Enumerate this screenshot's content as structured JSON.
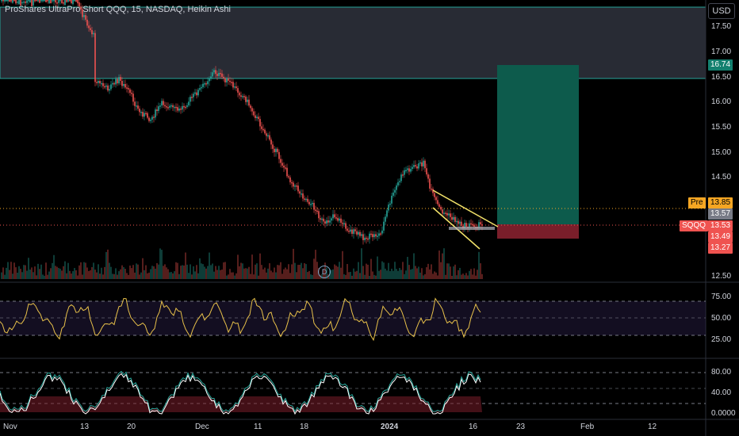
{
  "header": {
    "title": "ProShares UltraPro Short QQQ, 15, NASDAQ, Heikin Ashi",
    "currency": "USD"
  },
  "price_axis": {
    "ticks": [
      "17.50",
      "17.00",
      "16.50",
      "16.00",
      "15.50",
      "15.00",
      "14.50",
      "12.50"
    ]
  },
  "price_tags": {
    "target": "16.74",
    "pre_label": "Pre",
    "pre_value": "13.85",
    "gray_value": "13.57",
    "symbol": "SQQQ",
    "last_value": "13.53",
    "red_1": "13.49",
    "red_2": "13.27"
  },
  "rsi_axis": {
    "ticks": [
      "75.00",
      "50.00",
      "25.00"
    ]
  },
  "stoch_axis": {
    "ticks": [
      "80.00",
      "40.00",
      "0.0000"
    ]
  },
  "time_axis": {
    "labels": [
      "Nov",
      "13",
      "20",
      "Dec",
      "11",
      "18",
      "2024",
      "16",
      "23",
      "Feb",
      "12"
    ]
  },
  "badge": {
    "dividend": "D"
  },
  "colors": {
    "up": "#26a69a",
    "down": "#ef5350",
    "rsi": "#e8c14a",
    "target_zone": "#0d5b4c",
    "stop_zone": "#7a1e2a",
    "supply_zone": "#363a45"
  }
}
